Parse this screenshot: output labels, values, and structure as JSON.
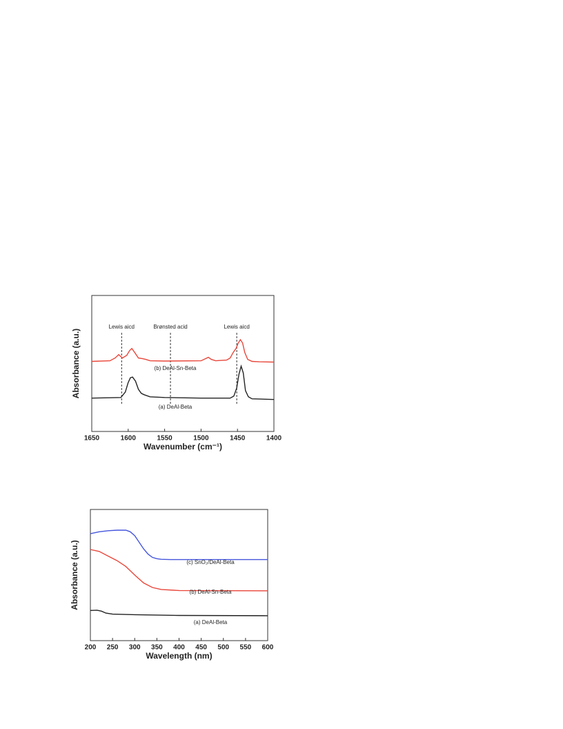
{
  "chart_data": [
    {
      "type": "line",
      "xlabel": "Wavenumber (cm⁻¹)",
      "ylabel": "Absorbance (a.u.)",
      "xlim": [
        1650,
        1400
      ],
      "xticks": [
        1650,
        1600,
        1550,
        1500,
        1450,
        1400
      ],
      "ylim": [
        0,
        10
      ],
      "annotations": [
        {
          "text": "Lewis aicd",
          "x": 1609
        },
        {
          "text": "Brønsted acid",
          "x": 1542
        },
        {
          "text": "Lewis aicd",
          "x": 1451
        }
      ],
      "series": [
        {
          "name": "(b) DeAl-Sn-Beta",
          "color": "#e8463a",
          "x": [
            1650,
            1625,
            1618,
            1613,
            1608,
            1602,
            1598,
            1595,
            1591,
            1586,
            1580,
            1576,
            1570,
            1550,
            1500,
            1494,
            1490,
            1486,
            1480,
            1465,
            1460,
            1456,
            1452,
            1449,
            1446,
            1443,
            1440,
            1436,
            1430,
            1420,
            1400
          ],
          "values": [
            5.15,
            5.2,
            5.4,
            5.65,
            5.4,
            5.6,
            5.95,
            6.1,
            5.8,
            5.4,
            5.35,
            5.3,
            5.2,
            5.18,
            5.2,
            5.35,
            5.45,
            5.3,
            5.2,
            5.25,
            5.4,
            5.8,
            6.1,
            6.5,
            6.75,
            6.5,
            5.8,
            5.3,
            5.15,
            5.12,
            5.1
          ]
        },
        {
          "name": "(a) DeAl-Beta",
          "color": "#222222",
          "x": [
            1650,
            1610,
            1604,
            1600,
            1597,
            1594,
            1590,
            1586,
            1582,
            1578,
            1570,
            1550,
            1500,
            1460,
            1455,
            1451,
            1448,
            1445,
            1442,
            1439,
            1435,
            1430,
            1400
          ],
          "values": [
            2.45,
            2.5,
            2.9,
            3.6,
            3.95,
            4.0,
            3.7,
            3.1,
            2.8,
            2.7,
            2.55,
            2.5,
            2.45,
            2.45,
            2.6,
            3.2,
            4.2,
            4.8,
            4.3,
            3.0,
            2.55,
            2.4,
            2.35
          ]
        }
      ]
    },
    {
      "type": "line",
      "xlabel": "Wavelength (nm)",
      "ylabel": "Absorbance (a.u.)",
      "xlim": [
        200,
        600
      ],
      "xticks": [
        200,
        250,
        300,
        350,
        400,
        450,
        500,
        550,
        600
      ],
      "ylim": [
        0,
        10
      ],
      "series": [
        {
          "name": "(c) SnO₂/DeAl-Beta",
          "color": "#4455dd",
          "x": [
            200,
            220,
            240,
            260,
            280,
            290,
            300,
            310,
            320,
            330,
            340,
            350,
            360,
            380,
            600
          ],
          "values": [
            8.15,
            8.3,
            8.38,
            8.42,
            8.42,
            8.3,
            8.0,
            7.5,
            7.0,
            6.6,
            6.35,
            6.25,
            6.2,
            6.18,
            6.18
          ]
        },
        {
          "name": "(b) DeAl-Sn-Beta",
          "color": "#e8463a",
          "x": [
            200,
            220,
            240,
            260,
            280,
            300,
            320,
            340,
            360,
            400,
            600
          ],
          "values": [
            6.95,
            6.8,
            6.45,
            6.1,
            5.65,
            5.0,
            4.4,
            4.05,
            3.9,
            3.82,
            3.8
          ]
        },
        {
          "name": "(a) DeAl-Beta",
          "color": "#222222",
          "x": [
            200,
            215,
            225,
            235,
            250,
            300,
            400,
            600
          ],
          "values": [
            2.3,
            2.32,
            2.25,
            2.1,
            2.02,
            1.98,
            1.92,
            1.9
          ]
        }
      ]
    }
  ]
}
